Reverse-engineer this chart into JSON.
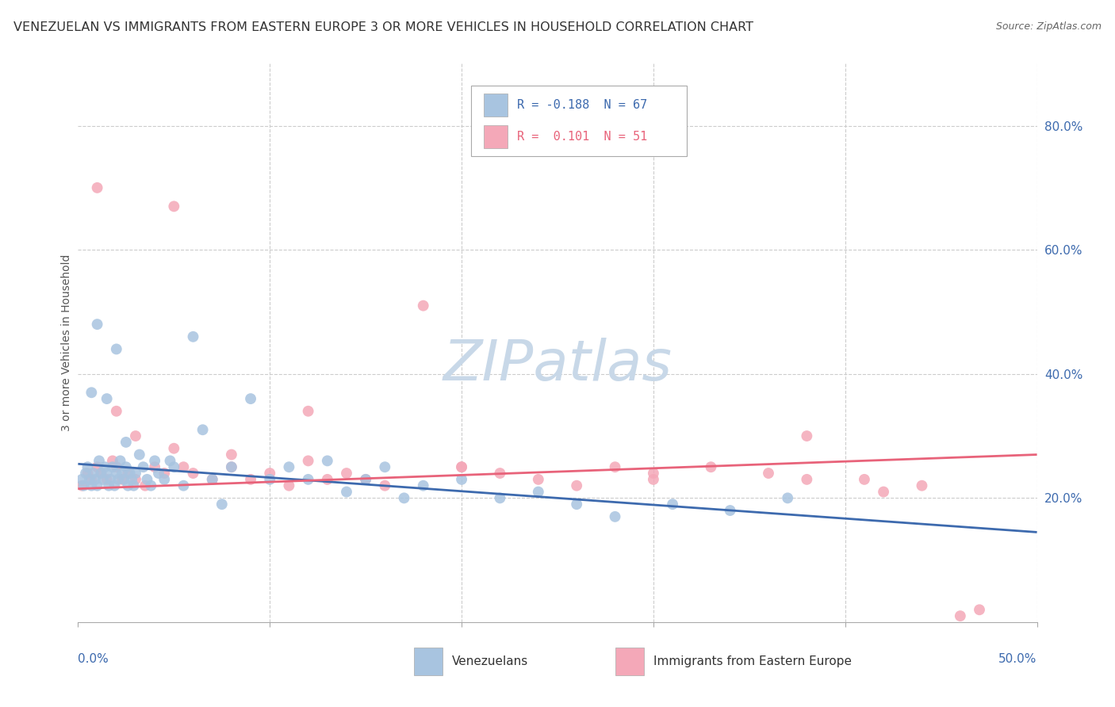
{
  "title": "VENEZUELAN VS IMMIGRANTS FROM EASTERN EUROPE 3 OR MORE VEHICLES IN HOUSEHOLD CORRELATION CHART",
  "source": "Source: ZipAtlas.com",
  "ylabel": "3 or more Vehicles in Household",
  "right_yticks": [
    "80.0%",
    "60.0%",
    "40.0%",
    "20.0%"
  ],
  "right_ytick_vals": [
    0.8,
    0.6,
    0.4,
    0.2
  ],
  "xlim": [
    0.0,
    0.5
  ],
  "ylim": [
    0.0,
    0.9
  ],
  "legend_r1_text": "R = -0.188  N = 67",
  "legend_r2_text": "R =  0.101  N = 51",
  "blue_scatter_color": "#A8C4E0",
  "pink_scatter_color": "#F4A8B8",
  "blue_line_color": "#3D6AAE",
  "pink_line_color": "#E8637A",
  "legend_blue_fill": "#A8C4E0",
  "legend_pink_fill": "#F4A8B8",
  "legend_text_blue": "#3D6AAE",
  "legend_text_pink": "#E8637A",
  "right_axis_color": "#3D6AAE",
  "bottom_label_color": "#3D6AAE",
  "venezuelan_x": [
    0.002,
    0.003,
    0.004,
    0.005,
    0.006,
    0.007,
    0.008,
    0.009,
    0.01,
    0.011,
    0.012,
    0.013,
    0.014,
    0.015,
    0.016,
    0.017,
    0.018,
    0.019,
    0.02,
    0.021,
    0.022,
    0.023,
    0.024,
    0.025,
    0.026,
    0.027,
    0.028,
    0.029,
    0.03,
    0.032,
    0.034,
    0.036,
    0.038,
    0.04,
    0.042,
    0.045,
    0.048,
    0.05,
    0.055,
    0.06,
    0.065,
    0.07,
    0.075,
    0.08,
    0.09,
    0.1,
    0.11,
    0.12,
    0.13,
    0.14,
    0.15,
    0.16,
    0.17,
    0.18,
    0.2,
    0.22,
    0.24,
    0.26,
    0.28,
    0.31,
    0.34,
    0.37,
    0.007,
    0.015,
    0.025,
    0.01,
    0.02
  ],
  "venezuelan_y": [
    0.23,
    0.22,
    0.24,
    0.25,
    0.23,
    0.22,
    0.24,
    0.23,
    0.22,
    0.26,
    0.24,
    0.23,
    0.25,
    0.24,
    0.22,
    0.23,
    0.25,
    0.22,
    0.24,
    0.23,
    0.26,
    0.24,
    0.23,
    0.25,
    0.22,
    0.24,
    0.23,
    0.22,
    0.24,
    0.27,
    0.25,
    0.23,
    0.22,
    0.26,
    0.24,
    0.23,
    0.26,
    0.25,
    0.22,
    0.46,
    0.31,
    0.23,
    0.19,
    0.25,
    0.36,
    0.23,
    0.25,
    0.23,
    0.26,
    0.21,
    0.23,
    0.25,
    0.2,
    0.22,
    0.23,
    0.2,
    0.21,
    0.19,
    0.17,
    0.19,
    0.18,
    0.2,
    0.37,
    0.36,
    0.29,
    0.48,
    0.44
  ],
  "eastern_x": [
    0.002,
    0.005,
    0.007,
    0.01,
    0.012,
    0.015,
    0.018,
    0.02,
    0.023,
    0.026,
    0.03,
    0.035,
    0.04,
    0.045,
    0.05,
    0.055,
    0.06,
    0.07,
    0.08,
    0.09,
    0.1,
    0.11,
    0.12,
    0.13,
    0.14,
    0.15,
    0.16,
    0.18,
    0.2,
    0.22,
    0.24,
    0.26,
    0.28,
    0.3,
    0.33,
    0.36,
    0.38,
    0.41,
    0.44,
    0.47,
    0.01,
    0.02,
    0.03,
    0.05,
    0.08,
    0.12,
    0.2,
    0.3,
    0.38,
    0.42,
    0.46
  ],
  "eastern_y": [
    0.22,
    0.24,
    0.23,
    0.25,
    0.24,
    0.23,
    0.26,
    0.25,
    0.23,
    0.24,
    0.23,
    0.22,
    0.25,
    0.24,
    0.67,
    0.25,
    0.24,
    0.23,
    0.25,
    0.23,
    0.24,
    0.22,
    0.26,
    0.23,
    0.24,
    0.23,
    0.22,
    0.51,
    0.25,
    0.24,
    0.23,
    0.22,
    0.25,
    0.23,
    0.25,
    0.24,
    0.3,
    0.23,
    0.22,
    0.02,
    0.7,
    0.34,
    0.3,
    0.28,
    0.27,
    0.34,
    0.25,
    0.24,
    0.23,
    0.21,
    0.01
  ],
  "blue_trend_x": [
    0.0,
    0.5
  ],
  "blue_trend_y": [
    0.255,
    0.145
  ],
  "pink_trend_x": [
    0.0,
    0.5
  ],
  "pink_trend_y": [
    0.215,
    0.27
  ],
  "background_color": "#FFFFFF",
  "grid_color": "#CCCCCC",
  "title_fontsize": 11.5,
  "source_fontsize": 9,
  "axis_label_fontsize": 10,
  "tick_fontsize": 11,
  "watermark_text": "ZIPatlas",
  "watermark_color": "#C8D8E8",
  "bottom_legend_label1": "Venezuelans",
  "bottom_legend_label2": "Immigrants from Eastern Europe"
}
